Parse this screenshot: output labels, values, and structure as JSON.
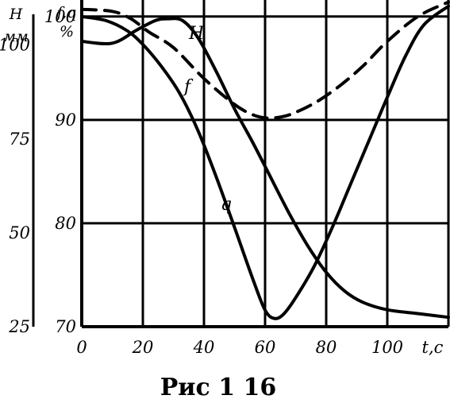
{
  "chart_data": {
    "type": "line",
    "caption": "Рис 1 16",
    "x_axis": {
      "label": "t,c",
      "range": [
        0,
        120
      ],
      "ticks": [
        0,
        20,
        40,
        60,
        80,
        100
      ],
      "tick_labels": [
        "0",
        "20",
        "40",
        "60",
        "80",
        "100"
      ]
    },
    "left_axis": {
      "label_lines": [
        "H",
        "мм"
      ],
      "range": [
        25,
        112
      ],
      "ticks": [
        25,
        50,
        75,
        100
      ],
      "tick_labels": [
        "25",
        "50",
        "75",
        "100"
      ]
    },
    "right_axis": {
      "label_lines": [
        "f,q",
        "%"
      ],
      "range": [
        70,
        101.6
      ],
      "ticks": [
        70,
        80,
        90,
        100
      ],
      "tick_labels": [
        "70",
        "80",
        "90",
        "100"
      ]
    },
    "grid": true,
    "series": [
      {
        "name": "H",
        "axis": "left",
        "style": "solid",
        "x": [
          0,
          10,
          18,
          24,
          28,
          33,
          38,
          44,
          50,
          56,
          62,
          68,
          74,
          80,
          86,
          92,
          100,
          110,
          120
        ],
        "y": [
          101,
          100.5,
          104,
          106.5,
          107,
          106.5,
          102,
          93,
          83,
          74,
          64.5,
          55,
          46.5,
          39.5,
          34.5,
          31.5,
          29.5,
          28.5,
          27.5
        ]
      },
      {
        "name": "f",
        "axis": "right",
        "style": "dashed",
        "x": [
          0,
          10,
          16,
          22,
          30,
          40,
          50,
          56,
          60,
          63,
          68,
          76,
          84,
          92,
          100,
          110,
          120
        ],
        "y": [
          100.7,
          100.5,
          99.8,
          98.5,
          97,
          94,
          91.5,
          90.5,
          90.2,
          90.2,
          90.5,
          91.6,
          93.2,
          95.2,
          97.6,
          100,
          101.4
        ]
      },
      {
        "name": "q",
        "axis": "right",
        "style": "solid",
        "x": [
          0,
          8,
          15,
          20,
          26,
          32,
          38,
          44,
          50,
          56,
          60,
          63,
          66,
          70,
          76,
          82,
          88,
          94,
          100,
          106,
          112,
          120
        ],
        "y": [
          100,
          99.6,
          98.6,
          97.3,
          95.2,
          92.6,
          89,
          84.5,
          79.6,
          74.6,
          71.6,
          70.8,
          71.2,
          72.8,
          75.8,
          79.6,
          83.8,
          88,
          92.2,
          96.2,
          99.2,
          101
        ]
      }
    ]
  }
}
